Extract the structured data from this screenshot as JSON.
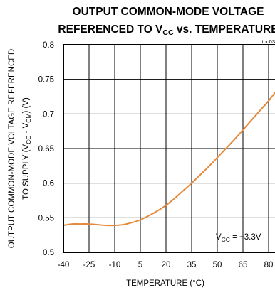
{
  "chart_data": {
    "type": "line",
    "title_line1": "OUTPUT COMMON-MODE VOLTAGE",
    "title_line2": {
      "pre": "REFERENCED TO V",
      "sub": "CC",
      "post": " vs. TEMPERATURE"
    },
    "doc_id": "toc03",
    "xlabel": "TEMPERATURE (°C)",
    "ylabel_line1": "OUTPUT COMMON-MODE VOLTAGE REFERENCED",
    "ylabel_line2": {
      "pre": "TO SUPPLY (V",
      "sub1": "CC",
      "mid": " - V",
      "sub2": "CM",
      "post": ") (V)"
    },
    "xlim": [
      -40,
      85
    ],
    "ylim": [
      0.5,
      0.8
    ],
    "x_ticks": [
      "-40",
      "-25",
      "-10",
      "5",
      "20",
      "35",
      "50",
      "65",
      "80"
    ],
    "x_tick_values": [
      -40,
      -25,
      -10,
      5,
      20,
      35,
      50,
      65,
      80
    ],
    "y_ticks": [
      "0.8",
      "0.75",
      "0.7",
      "0.65",
      "0.6",
      "0.55",
      "0.5"
    ],
    "y_tick_values": [
      0.8,
      0.75,
      0.7,
      0.65,
      0.6,
      0.55,
      0.5
    ],
    "grid": true,
    "annotation": {
      "pre": "V",
      "sub": "CC",
      "post": " = +3.3V"
    },
    "series": [
      {
        "color": "#e58a3c",
        "x": [
          -40,
          -35,
          -30,
          -25,
          -20,
          -15,
          -10,
          -5,
          0,
          5,
          10,
          15,
          20,
          25,
          30,
          35,
          40,
          45,
          50,
          55,
          60,
          65,
          70,
          75,
          80,
          85
        ],
        "y": [
          0.539,
          0.541,
          0.541,
          0.541,
          0.54,
          0.539,
          0.539,
          0.54,
          0.543,
          0.547,
          0.553,
          0.56,
          0.568,
          0.578,
          0.589,
          0.6,
          0.612,
          0.624,
          0.637,
          0.65,
          0.663,
          0.677,
          0.691,
          0.705,
          0.719,
          0.735
        ]
      }
    ]
  }
}
